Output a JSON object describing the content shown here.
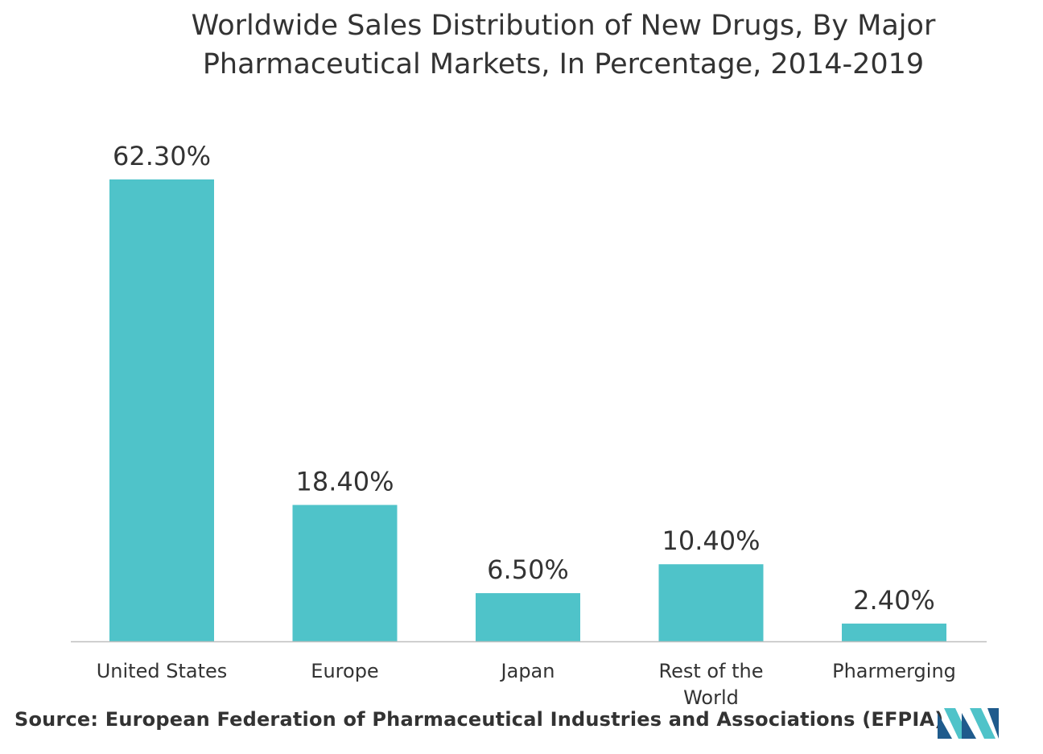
{
  "title": {
    "line1": "Worldwide Sales Distribution of New Drugs, By Major",
    "line2": "Pharmaceutical Markets, In Percentage, 2014-2019"
  },
  "source": {
    "label": "Source:",
    "text": "European Federation of Pharmaceutical Industries and Associations (EFPIA)"
  },
  "colors": {
    "bar": "#4fc3c9",
    "axis": "#bfbfbf",
    "text": "#333333",
    "logo_dark": "#1f5b8c",
    "logo_light": "#4fc3c9"
  },
  "chart_data": {
    "type": "bar",
    "categories": [
      "United States",
      "Europe",
      "Japan",
      "Rest of the World",
      "Pharmerging"
    ],
    "category_lines": [
      [
        "United States"
      ],
      [
        "Europe"
      ],
      [
        "Japan"
      ],
      [
        "Rest of the",
        "World"
      ],
      [
        "Pharmerging"
      ]
    ],
    "values": [
      62.3,
      18.4,
      6.5,
      10.4,
      2.4
    ],
    "data_labels": [
      "62.30%",
      "18.40%",
      "6.50%",
      "10.40%",
      "2.40%"
    ],
    "unit": "%",
    "ylim": [
      0,
      62.3
    ],
    "grid": false,
    "legend": "none"
  }
}
